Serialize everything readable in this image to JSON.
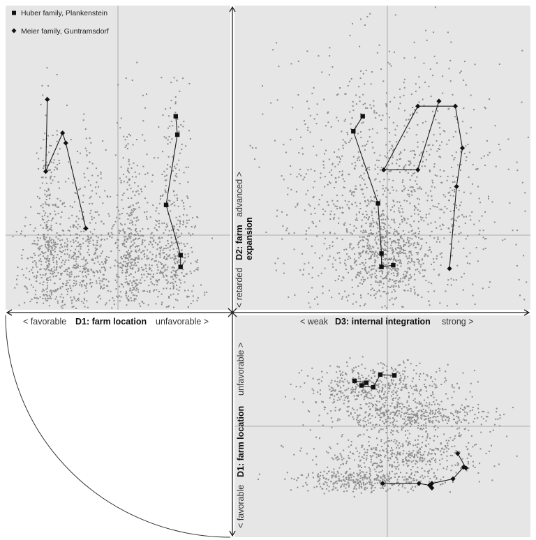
{
  "legend": [
    {
      "label": "Huber family, Plankenstein",
      "marker": "square"
    },
    {
      "label": "Meier family, Guntramsdorf",
      "marker": "diamond"
    }
  ],
  "axes": {
    "d1": {
      "name": "D1: farm location",
      "low": "< favorable",
      "high": "unfavorable >"
    },
    "d2": {
      "name_line1": "D2: farm",
      "name_line2": "expansion",
      "low": "< retarded",
      "high": "advanced >"
    },
    "d3": {
      "name": "D3: internal integration",
      "low": "< weak",
      "high": "strong >"
    }
  },
  "colors": {
    "background": "#e6e6e6",
    "cloud": "#8c8c8c",
    "track": "#1a1a1a",
    "guide": "#9a9a9a"
  },
  "chart_data": [
    {
      "type": "scatter",
      "title": "",
      "xlabel": "D1: farm location",
      "ylabel": "D2: farm expansion",
      "xlim": [
        -1,
        1
      ],
      "ylim": [
        -1,
        1
      ],
      "grid": false,
      "legend_position": "top-left",
      "background_cloud": {
        "clusters": [
          {
            "cx": -0.85,
            "cy": -0.18,
            "sx": 0.2,
            "sy": 0.16,
            "n": 300
          },
          {
            "cx": -0.4,
            "cy": -0.22,
            "sx": 0.2,
            "sy": 0.15,
            "n": 260
          },
          {
            "cx": 0.15,
            "cy": -0.18,
            "sx": 0.16,
            "sy": 0.16,
            "n": 240
          },
          {
            "cx": 0.65,
            "cy": -0.2,
            "sx": 0.2,
            "sy": 0.15,
            "n": 260
          },
          {
            "cx": -0.85,
            "cy": 0.05,
            "sx": 0.08,
            "sy": 0.35,
            "n": 220
          },
          {
            "cx": 0.15,
            "cy": 0.1,
            "sx": 0.1,
            "sy": 0.32,
            "n": 200
          },
          {
            "cx": 0.65,
            "cy": 0.2,
            "sx": 0.12,
            "sy": 0.35,
            "n": 200
          },
          {
            "cx": -0.35,
            "cy": 0.15,
            "sx": 0.15,
            "sy": 0.32,
            "n": 120
          }
        ]
      },
      "series": [
        {
          "name": "Huber family, Plankenstein",
          "marker": "square",
          "x": [
            0.72,
            0.74,
            0.6,
            0.78,
            0.78
          ],
          "y": [
            0.71,
            0.6,
            0.18,
            -0.12,
            -0.19
          ]
        },
        {
          "name": "Meier family, Guntramsdorf",
          "marker": "diamond",
          "x": [
            -0.88,
            -0.9,
            -0.69,
            -0.65,
            -0.4
          ],
          "y": [
            0.81,
            0.38,
            0.61,
            0.55,
            0.04
          ]
        }
      ]
    },
    {
      "type": "scatter",
      "title": "",
      "xlabel": "D3: internal integration",
      "ylabel": "D2: farm expansion",
      "xlim": [
        -1,
        1
      ],
      "ylim": [
        -1,
        1
      ],
      "grid": false,
      "background_cloud": {
        "clusters": [
          {
            "cx": -0.05,
            "cy": -0.12,
            "sx": 0.18,
            "sy": 0.14,
            "n": 500
          },
          {
            "cx": 0.02,
            "cy": 0.22,
            "sx": 0.48,
            "sy": 0.42,
            "n": 1200
          }
        ]
      },
      "series": [
        {
          "name": "Huber family, Plankenstein",
          "marker": "square",
          "x": [
            -0.21,
            -0.29,
            -0.08,
            -0.05,
            -0.05,
            0.05
          ],
          "y": [
            0.71,
            0.62,
            0.19,
            -0.11,
            -0.19,
            -0.18
          ]
        },
        {
          "name": "Meier family, Guntramsdorf",
          "marker": "diamond",
          "x": [
            0.53,
            0.59,
            0.64,
            0.58,
            0.26,
            -0.03,
            0.26,
            0.44
          ],
          "y": [
            -0.2,
            0.29,
            0.52,
            0.77,
            0.77,
            0.39,
            0.39,
            0.8
          ]
        }
      ]
    },
    {
      "type": "scatter",
      "title": "",
      "xlabel": "D3: internal integration",
      "ylabel": "D1: farm location",
      "xlim": [
        -1,
        1
      ],
      "ylim": [
        -1,
        1
      ],
      "grid": false,
      "background_cloud": {
        "clusters": [
          {
            "cx": -0.05,
            "cy": 0.42,
            "sx": 0.32,
            "sy": 0.14,
            "n": 500
          },
          {
            "cx": 0.2,
            "cy": 0.1,
            "sx": 0.36,
            "sy": 0.08,
            "n": 400
          },
          {
            "cx": 0.15,
            "cy": -0.32,
            "sx": 0.35,
            "sy": 0.12,
            "n": 450
          },
          {
            "cx": -0.18,
            "cy": -0.6,
            "sx": 0.3,
            "sy": 0.06,
            "n": 350
          }
        ]
      },
      "series": [
        {
          "name": "Huber family, Plankenstein",
          "marker": "square",
          "x": [
            -0.28,
            -0.18,
            -0.22,
            -0.12,
            -0.06,
            0.06
          ],
          "y": [
            0.5,
            0.48,
            0.45,
            0.43,
            0.57,
            0.56
          ]
        },
        {
          "name": "Meier family, Guntramsdorf",
          "marker": "diamond",
          "x": [
            -0.04,
            0.27,
            0.36,
            0.38,
            0.38,
            0.56,
            0.65,
            0.67,
            0.6
          ],
          "y": [
            -0.63,
            -0.63,
            -0.65,
            -0.68,
            -0.63,
            -0.58,
            -0.45,
            -0.46,
            -0.3
          ]
        }
      ]
    }
  ]
}
